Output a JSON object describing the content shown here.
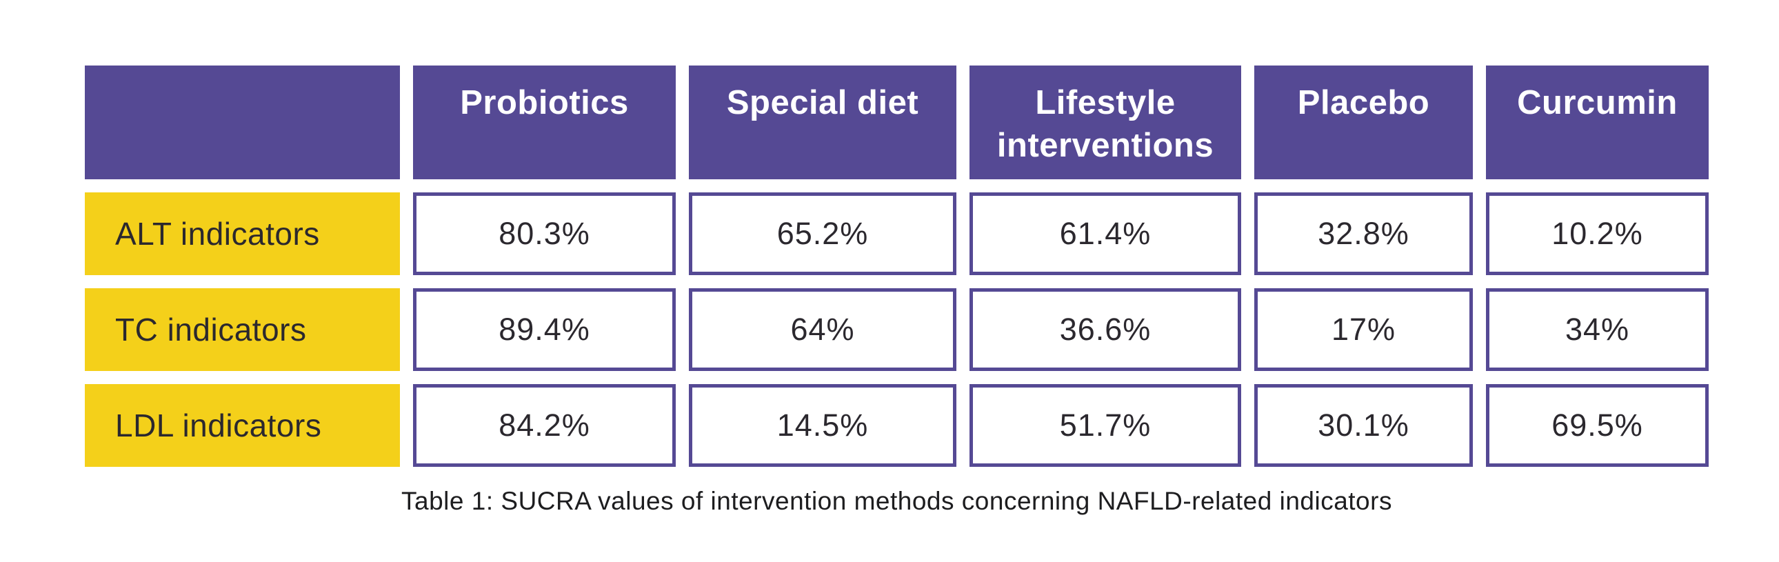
{
  "table": {
    "columns": [
      "Probiotics",
      "Special diet",
      "Lifestyle interventions",
      "Placebo",
      "Curcumin"
    ],
    "rows": [
      {
        "label": "ALT indicators",
        "values": [
          "80.3%",
          "65.2%",
          "61.4%",
          "32.8%",
          "10.2%"
        ]
      },
      {
        "label": "TC indicators",
        "values": [
          "89.4%",
          "64%",
          "36.6%",
          "17%",
          "34%"
        ]
      },
      {
        "label": "LDL indicators",
        "values": [
          "84.2%",
          "14.5%",
          "51.7%",
          "30.1%",
          "69.5%"
        ]
      }
    ],
    "caption": "Table 1: SUCRA values of intervention methods concerning NAFLD-related indicators"
  },
  "colors": {
    "header_bg": "#554994",
    "cell_border": "#554994",
    "row_label_bg": "#F4D01A",
    "header_text": "#FFFFFF",
    "body_text": "#2B282E"
  },
  "chart_data": {
    "type": "table",
    "title": "Table 1: SUCRA values of intervention methods concerning NAFLD-related indicators",
    "columns": [
      "",
      "Probiotics",
      "Special diet",
      "Lifestyle interventions",
      "Placebo",
      "Curcumin"
    ],
    "rows": [
      {
        "label": "ALT indicators",
        "values_percent": [
          80.3,
          65.2,
          61.4,
          32.8,
          10.2
        ]
      },
      {
        "label": "TC indicators",
        "values_percent": [
          89.4,
          64,
          36.6,
          17,
          34
        ]
      },
      {
        "label": "LDL indicators",
        "values_percent": [
          84.2,
          14.5,
          51.7,
          30.1,
          69.5
        ]
      }
    ],
    "units": "percent (SUCRA values)"
  }
}
